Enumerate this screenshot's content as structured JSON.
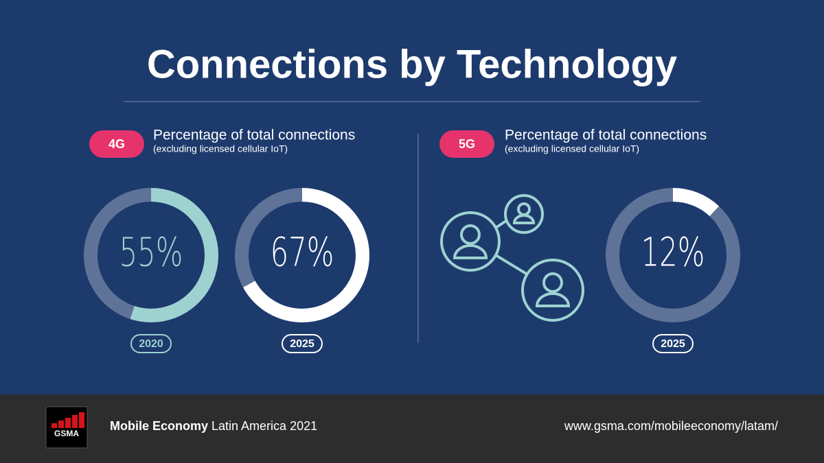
{
  "title": "Connections by Technology",
  "sections": [
    {
      "badge": "4G",
      "heading": "Percentage of total connections",
      "subheading": "(excluding licensed cellular IoT)"
    },
    {
      "badge": "5G",
      "heading": "Percentage of total connections",
      "subheading": "(excluding licensed cellular IoT)"
    }
  ],
  "chart_data": [
    {
      "type": "donut",
      "categories": [
        "2020"
      ],
      "values": [
        55
      ],
      "value_labels": [
        "55%"
      ],
      "color": "#9dd2d1"
    },
    {
      "type": "donut",
      "categories": [
        "2025"
      ],
      "values": [
        67
      ],
      "value_labels": [
        "67%"
      ],
      "color": "#ffffff"
    },
    {
      "type": "donut",
      "categories": [
        "2025"
      ],
      "values": [
        12
      ],
      "value_labels": [
        "12%"
      ],
      "color": "#ffffff"
    }
  ],
  "footer": {
    "brand": "GSMA",
    "publication_bold": "Mobile Economy",
    "publication": "Latin America 2021",
    "url": "www.gsma.com/mobileeconomy/latam/"
  }
}
